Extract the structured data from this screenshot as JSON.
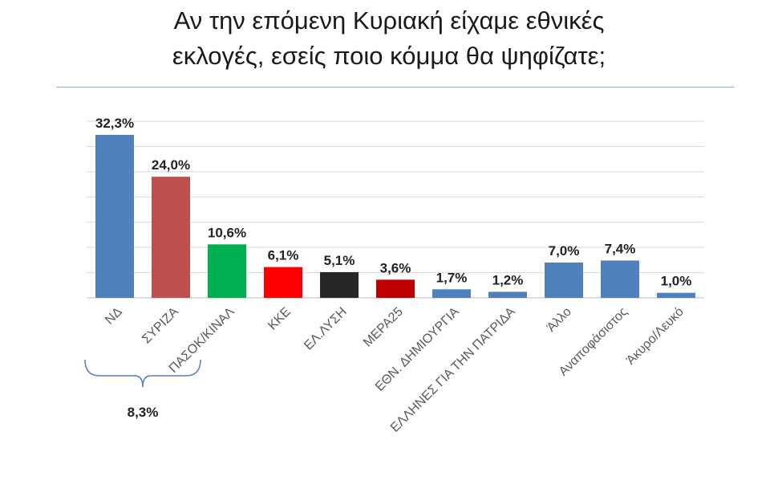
{
  "title_line1": "Αν την επόμενη Κυριακή είχαμε εθνικές",
  "title_line2": "εκλογές, εσείς ποιο κόμμα θα ψηφίζατε;",
  "chart_data": {
    "type": "bar",
    "title": "Αν την επόμενη Κυριακή είχαμε εθνικές εκλογές, εσείς ποιο κόμμα θα ψηφίζατε;",
    "categories": [
      "ΝΔ",
      "ΣΥΡΙΖΑ",
      "ΠΑΣΟΚ/ΚΙΝΑΛ",
      "ΚΚΕ",
      "ΕΛ.ΛΥΣΗ",
      "ΜΕΡΑ25",
      "ΕΘΝ. ΔΗΜΙΟΥΡΓΙΑ",
      "ΕΛΛΗΝΕΣ ΓΙΑ ΤΗΝ ΠΑΤΡΙΔΑ",
      "Άλλο",
      "Αναποφάσιστος",
      "Άκυρο/Λευκό"
    ],
    "values": [
      32.3,
      24.0,
      10.6,
      6.1,
      5.1,
      3.6,
      1.7,
      1.2,
      7.0,
      7.4,
      1.0
    ],
    "value_labels": [
      "32,3%",
      "24,0%",
      "10,6%",
      "6,1%",
      "5,1%",
      "3,6%",
      "1,7%",
      "1,2%",
      "7,0%",
      "7,4%",
      "1,0%"
    ],
    "colors": [
      "#4f81bd",
      "#c0504d",
      "#00b050",
      "#ff0000",
      "#262626",
      "#c00000",
      "#4f81bd",
      "#4f81bd",
      "#4f81bd",
      "#4f81bd",
      "#4f81bd"
    ],
    "ylim": [
      0,
      35
    ],
    "grid": true,
    "annotation": {
      "text": "8,3%",
      "spans": [
        "ΝΔ",
        "ΣΥΡΙΖΑ"
      ]
    }
  }
}
